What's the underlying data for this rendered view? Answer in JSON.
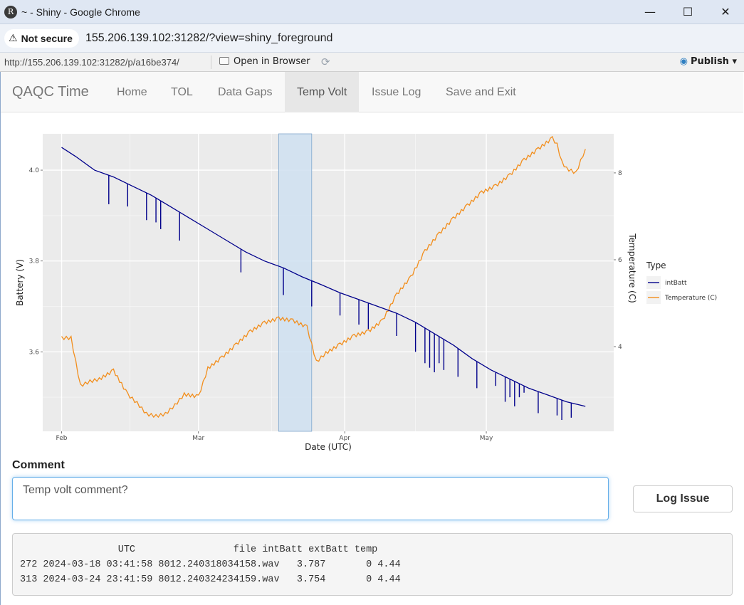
{
  "window": {
    "title": "~ - Shiny - Google Chrome",
    "app_icon_letter": "R",
    "buttons": {
      "minimize": "—",
      "maximize": "☐",
      "close": "✕"
    }
  },
  "address_bar": {
    "security_label": "Not secure",
    "url": "155.206.139.102:31282/?view=shiny_foreground"
  },
  "viewer_bar": {
    "url": "http://155.206.139.102:31282/p/a16be374/",
    "open_in_browser_label": "Open in Browser",
    "publish_label": "Publish"
  },
  "navbar": {
    "brand": "QAQC Time",
    "tabs": [
      {
        "label": "Home",
        "active": false
      },
      {
        "label": "TOL",
        "active": false
      },
      {
        "label": "Data Gaps",
        "active": false
      },
      {
        "label": "Temp Volt",
        "active": true
      },
      {
        "label": "Issue Log",
        "active": false
      },
      {
        "label": "Save and Exit",
        "active": false
      }
    ]
  },
  "chart_data": {
    "type": "line",
    "xlabel": "Date (UTC)",
    "ylabel": "Battery (V)",
    "y2label": "Temperature (C)",
    "x_ticks": [
      "Feb",
      "Mar",
      "Apr",
      "May"
    ],
    "x_tick_dates": [
      "2024-02-01",
      "2024-03-01",
      "2024-04-01",
      "2024-05-01"
    ],
    "xlim": [
      "2024-01-28",
      "2024-05-28"
    ],
    "ylim": [
      3.425,
      4.08
    ],
    "y_ticks": [
      3.6,
      3.8,
      4.0
    ],
    "y_tick_labels": [
      "3.6",
      "3.8",
      "4.0"
    ],
    "y2lim": [
      2.05,
      8.9
    ],
    "y2_ticks": [
      4,
      6,
      8
    ],
    "y2_tick_labels": [
      "4",
      "6",
      "8"
    ],
    "grid": true,
    "legend": {
      "title": "Type",
      "position": "right"
    },
    "highlight": {
      "x": [
        "2024-03-18",
        "2024-03-25"
      ],
      "color": "#cfe0f1"
    },
    "series": [
      {
        "name": "intBatt",
        "axis": "left",
        "color": "#00008b",
        "x": [
          "2024-02-01",
          "2024-02-04",
          "2024-02-08",
          "2024-02-12",
          "2024-02-16",
          "2024-02-20",
          "2024-02-24",
          "2024-02-28",
          "2024-03-03",
          "2024-03-07",
          "2024-03-11",
          "2024-03-15",
          "2024-03-19",
          "2024-03-23",
          "2024-03-27",
          "2024-03-31",
          "2024-04-04",
          "2024-04-08",
          "2024-04-12",
          "2024-04-16",
          "2024-04-20",
          "2024-04-24",
          "2024-04-28",
          "2024-05-02",
          "2024-05-06",
          "2024-05-10",
          "2024-05-14",
          "2024-05-18",
          "2024-05-22"
        ],
        "values": [
          4.05,
          4.03,
          4.0,
          3.985,
          3.965,
          3.945,
          3.92,
          3.895,
          3.87,
          3.845,
          3.82,
          3.8,
          3.785,
          3.765,
          3.748,
          3.73,
          3.715,
          3.7,
          3.685,
          3.665,
          3.64,
          3.615,
          3.585,
          3.56,
          3.54,
          3.52,
          3.505,
          3.49,
          3.48
        ],
        "dips": [
          {
            "x": "2024-02-11",
            "y": 3.925
          },
          {
            "x": "2024-02-15",
            "y": 3.92
          },
          {
            "x": "2024-02-19",
            "y": 3.89
          },
          {
            "x": "2024-02-21",
            "y": 3.885
          },
          {
            "x": "2024-02-22",
            "y": 3.87
          },
          {
            "x": "2024-02-26",
            "y": 3.845
          },
          {
            "x": "2024-03-10",
            "y": 3.775
          },
          {
            "x": "2024-03-19",
            "y": 3.725
          },
          {
            "x": "2024-03-25",
            "y": 3.7
          },
          {
            "x": "2024-03-31",
            "y": 3.68
          },
          {
            "x": "2024-04-04",
            "y": 3.66
          },
          {
            "x": "2024-04-06",
            "y": 3.65
          },
          {
            "x": "2024-04-12",
            "y": 3.635
          },
          {
            "x": "2024-04-16",
            "y": 3.6
          },
          {
            "x": "2024-04-18",
            "y": 3.575
          },
          {
            "x": "2024-04-19",
            "y": 3.565
          },
          {
            "x": "2024-04-20",
            "y": 3.555
          },
          {
            "x": "2024-04-21",
            "y": 3.575
          },
          {
            "x": "2024-04-22",
            "y": 3.56
          },
          {
            "x": "2024-04-25",
            "y": 3.545
          },
          {
            "x": "2024-04-29",
            "y": 3.52
          },
          {
            "x": "2024-05-03",
            "y": 3.525
          },
          {
            "x": "2024-05-05",
            "y": 3.49
          },
          {
            "x": "2024-05-06",
            "y": 3.5
          },
          {
            "x": "2024-05-07",
            "y": 3.48
          },
          {
            "x": "2024-05-08",
            "y": 3.5
          },
          {
            "x": "2024-05-09",
            "y": 3.51
          },
          {
            "x": "2024-05-12",
            "y": 3.465
          },
          {
            "x": "2024-05-16",
            "y": 3.46
          },
          {
            "x": "2024-05-17",
            "y": 3.45
          },
          {
            "x": "2024-05-19",
            "y": 3.455
          }
        ]
      },
      {
        "name": "Temperature (C)",
        "axis": "right",
        "color": "#f28e1c",
        "x": [
          "2024-02-01",
          "2024-02-03",
          "2024-02-05",
          "2024-02-07",
          "2024-02-09",
          "2024-02-12",
          "2024-02-15",
          "2024-02-17",
          "2024-02-19",
          "2024-02-21",
          "2024-02-23",
          "2024-02-25",
          "2024-02-27",
          "2024-03-01",
          "2024-03-03",
          "2024-03-06",
          "2024-03-09",
          "2024-03-12",
          "2024-03-15",
          "2024-03-18",
          "2024-03-21",
          "2024-03-24",
          "2024-03-26",
          "2024-03-28",
          "2024-03-31",
          "2024-04-03",
          "2024-04-06",
          "2024-04-09",
          "2024-04-12",
          "2024-04-15",
          "2024-04-18",
          "2024-04-21",
          "2024-04-24",
          "2024-04-27",
          "2024-04-30",
          "2024-05-03",
          "2024-05-06",
          "2024-05-09",
          "2024-05-12",
          "2024-05-15",
          "2024-05-16",
          "2024-05-17",
          "2024-05-18",
          "2024-05-20",
          "2024-05-22"
        ],
        "values": [
          4.2,
          4.2,
          3.1,
          3.2,
          3.25,
          3.45,
          2.9,
          2.7,
          2.45,
          2.4,
          2.45,
          2.65,
          2.9,
          2.85,
          3.5,
          3.75,
          4.05,
          4.35,
          4.55,
          4.65,
          4.6,
          4.45,
          3.65,
          3.85,
          4.05,
          4.25,
          4.35,
          4.6,
          5.2,
          5.6,
          6.2,
          6.6,
          6.95,
          7.25,
          7.55,
          7.7,
          7.95,
          8.3,
          8.55,
          8.8,
          8.65,
          8.25,
          8.1,
          8.0,
          8.55
        ]
      }
    ]
  },
  "comment": {
    "label": "Comment",
    "value": "Temp volt comment?"
  },
  "log_issue_button": "Log Issue",
  "output": {
    "text": "                 UTC                 file intBatt extBatt temp\n272 2024-03-18 03:41:58 8012.240318034158.wav   3.787       0 4.44\n313 2024-03-24 23:41:59 8012.240324234159.wav   3.754       0 4.44"
  }
}
